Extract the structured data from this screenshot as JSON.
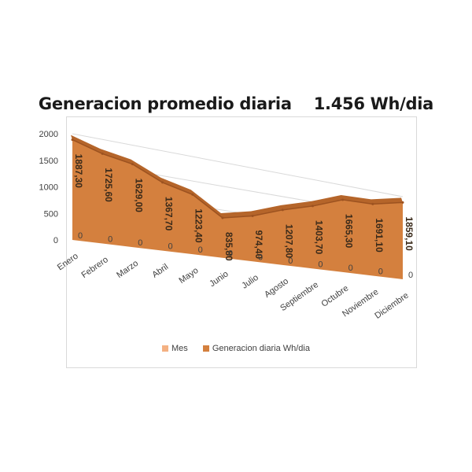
{
  "chart_data": {
    "type": "area",
    "title": "Generacion promedio diaria    1.456 Wh/dia",
    "categories": [
      "Enero",
      "Febrero",
      "Marzo",
      "Abril",
      "Mayo",
      "Junio",
      "Julio",
      "Agosto",
      "Septiembre",
      "Octubre",
      "Noviembre",
      "Diciembre"
    ],
    "series": [
      {
        "name": "Mes",
        "color": "#f4b183",
        "values": [
          0,
          0,
          0,
          0,
          0,
          0,
          0,
          0,
          0,
          0,
          0,
          0
        ]
      },
      {
        "name": "Generacion diaria Wh/dia",
        "color": "#d4803e",
        "values": [
          1887.3,
          1725.6,
          1629.0,
          1367.7,
          1223.4,
          835.8,
          974.4,
          1207.8,
          1403.7,
          1665.3,
          1691.1,
          1859.1
        ]
      }
    ],
    "data_labels": [
      "1887,30",
      "1725,60",
      "1629,00",
      "1367,70",
      "1223,40",
      "835,80",
      "974,40",
      "1207,80",
      "1403,70",
      "1665,30",
      "1691,10",
      "1859,10"
    ],
    "zero_labels": [
      "0",
      "0",
      "0",
      "0",
      "0",
      "0",
      "0",
      "0",
      "0",
      "0",
      "0",
      "0"
    ],
    "yticks": [
      "0",
      "500",
      "1000",
      "1500",
      "2000"
    ],
    "ylim": [
      0,
      2000
    ],
    "legend_position": "bottom",
    "grid": true
  }
}
